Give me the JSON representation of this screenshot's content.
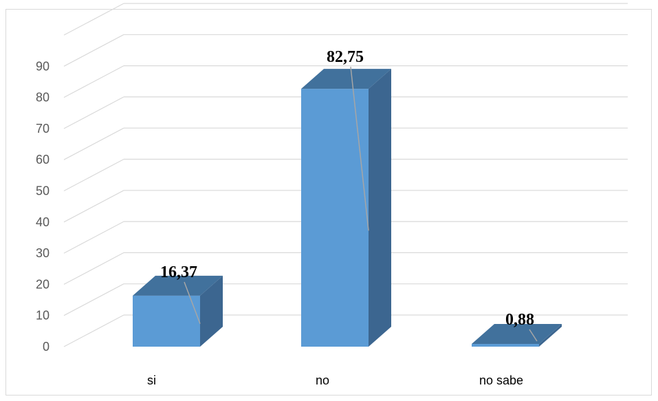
{
  "chart_data": {
    "type": "bar",
    "categories": [
      "si",
      "no",
      "no sabe"
    ],
    "values": [
      16.37,
      82.75,
      0.88
    ],
    "data_labels": [
      "16,37",
      "82,75",
      "0,88"
    ],
    "y_ticks": [
      "0",
      "10",
      "20",
      "30",
      "40",
      "50",
      "60",
      "70",
      "80",
      "90"
    ],
    "ylim": [
      0,
      90
    ],
    "grid": true,
    "legend": "none",
    "colors": {
      "bar_front": "#5b9bd5",
      "bar_top": "#41719c",
      "bar_side": "#3c6690",
      "gridline": "#d9d9d9"
    }
  }
}
